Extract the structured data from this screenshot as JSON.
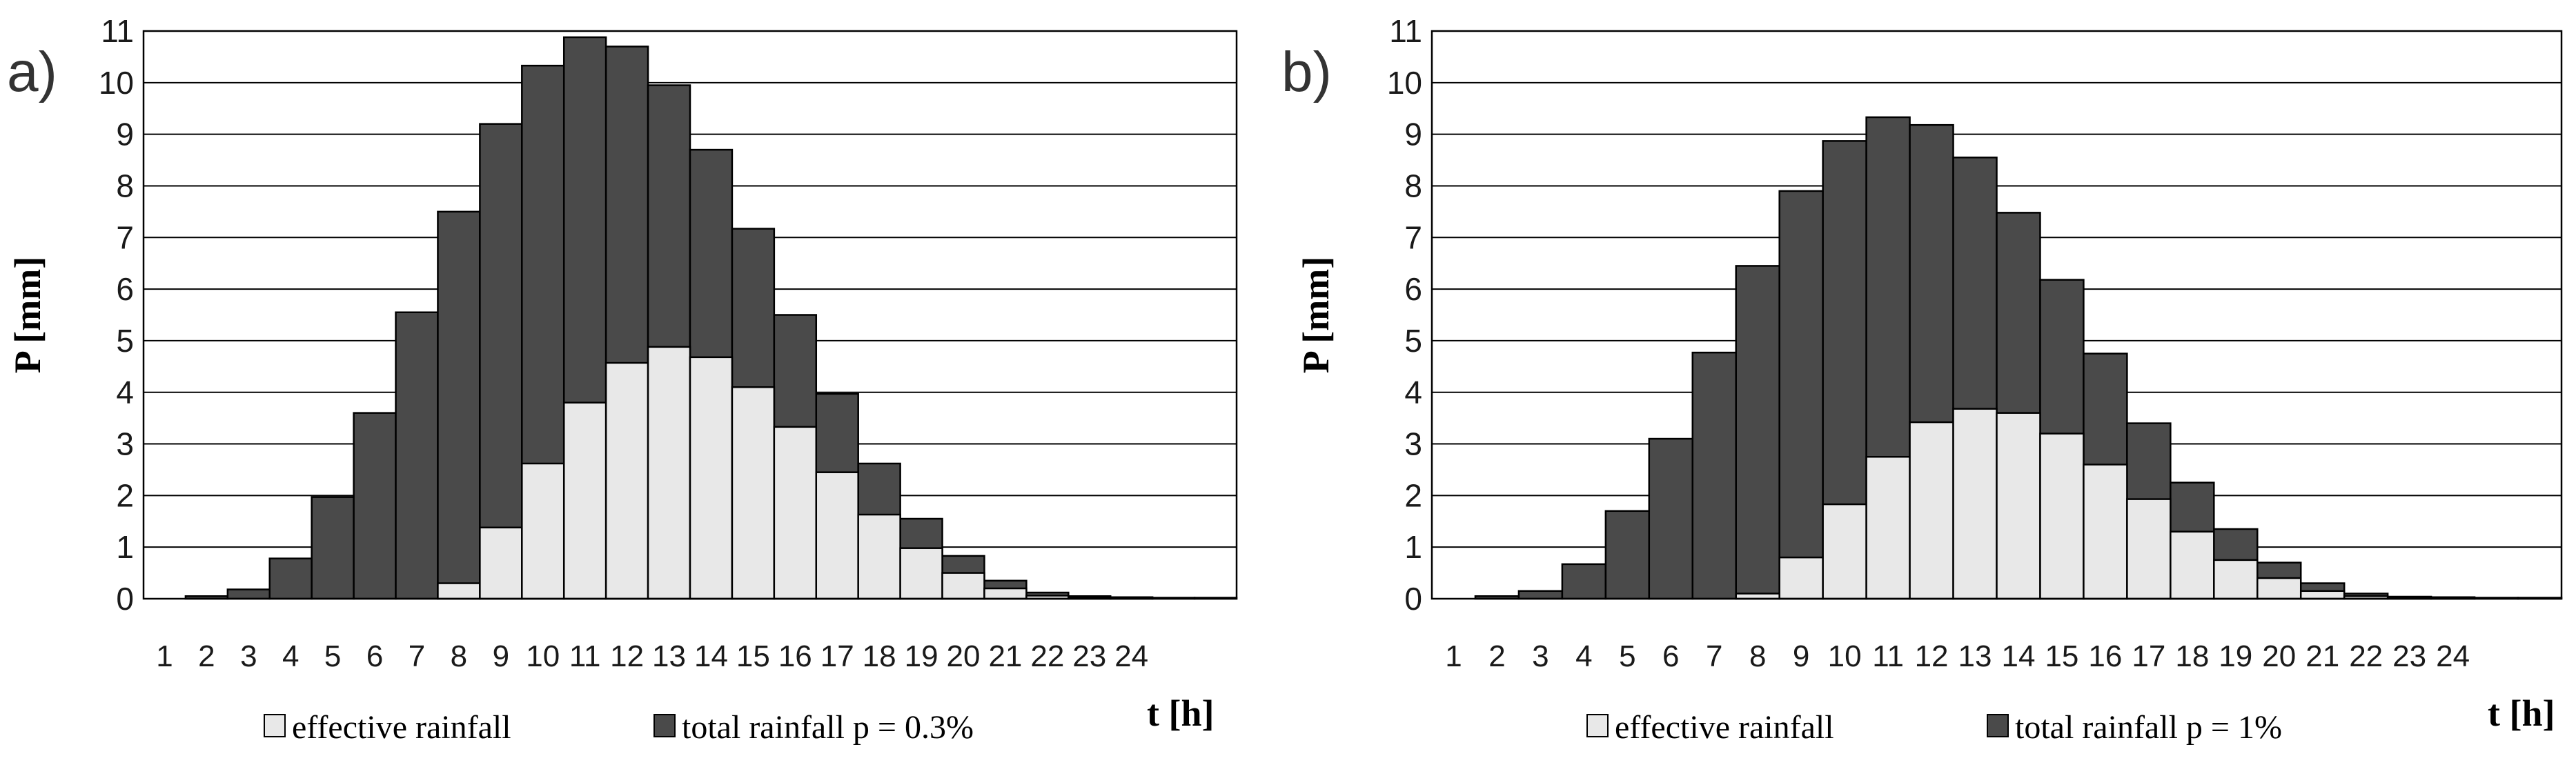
{
  "colors": {
    "total": "#4a4a4a",
    "effective": "#e8e8e8"
  },
  "chart_data": [
    {
      "type": "bar",
      "stacked": "overlay",
      "panel_label": "a)",
      "xlabel": "t [h]",
      "ylabel": "P [mm]",
      "ylim": [
        0,
        11
      ],
      "yticks": [
        "0",
        "1",
        "2",
        "3",
        "4",
        "5",
        "6",
        "7",
        "8",
        "9",
        "10",
        "11"
      ],
      "categories": [
        "1",
        "2",
        "3",
        "4",
        "5",
        "6",
        "7",
        "8",
        "9",
        "10",
        "11",
        "12",
        "13",
        "14",
        "15",
        "16",
        "17",
        "18",
        "19",
        "20",
        "21",
        "22",
        "23",
        "24",
        "",
        ""
      ],
      "grid": "horizontal",
      "legend_position": "bottom",
      "series": [
        {
          "name": "total rainfall p = 0.3%",
          "values": [
            0.0,
            0.05,
            0.18,
            0.78,
            1.97,
            3.6,
            5.55,
            7.5,
            9.2,
            10.33,
            10.88,
            10.7,
            9.95,
            8.7,
            7.17,
            5.5,
            3.97,
            2.62,
            1.55,
            0.83,
            0.35,
            0.12,
            0.05,
            0.03,
            0.02,
            0.02
          ]
        },
        {
          "name": "effective rainfall",
          "values": [
            0,
            0,
            0,
            0,
            0,
            0,
            0,
            0.3,
            1.38,
            2.62,
            3.8,
            4.57,
            4.88,
            4.68,
            4.1,
            3.33,
            2.45,
            1.63,
            0.98,
            0.5,
            0.2,
            0.06,
            0.02,
            0.01,
            0,
            0
          ]
        }
      ]
    },
    {
      "type": "bar",
      "stacked": "overlay",
      "panel_label": "b)",
      "xlabel": "t [h]",
      "ylabel": "P [mm]",
      "ylim": [
        0,
        11
      ],
      "yticks": [
        "0",
        "1",
        "2",
        "3",
        "4",
        "5",
        "6",
        "7",
        "8",
        "9",
        "10",
        "11"
      ],
      "categories": [
        "1",
        "2",
        "3",
        "4",
        "5",
        "6",
        "7",
        "8",
        "9",
        "10",
        "11",
        "12",
        "13",
        "14",
        "15",
        "16",
        "17",
        "18",
        "19",
        "20",
        "21",
        "22",
        "23",
        "24",
        "",
        ""
      ],
      "grid": "horizontal",
      "legend_position": "bottom",
      "series": [
        {
          "name": "total rainfall p = 1%",
          "values": [
            0.0,
            0.05,
            0.15,
            0.67,
            1.7,
            3.1,
            4.77,
            6.45,
            7.9,
            8.87,
            9.33,
            9.18,
            8.55,
            7.48,
            6.18,
            4.75,
            3.4,
            2.25,
            1.35,
            0.7,
            0.3,
            0.1,
            0.04,
            0.03,
            0.02,
            0.02
          ]
        },
        {
          "name": "effective rainfall",
          "values": [
            0,
            0,
            0,
            0,
            0,
            0,
            0,
            0.1,
            0.8,
            1.83,
            2.75,
            3.42,
            3.68,
            3.6,
            3.2,
            2.6,
            1.93,
            1.3,
            0.75,
            0.4,
            0.15,
            0.05,
            0.02,
            0.01,
            0,
            0
          ]
        }
      ]
    }
  ]
}
